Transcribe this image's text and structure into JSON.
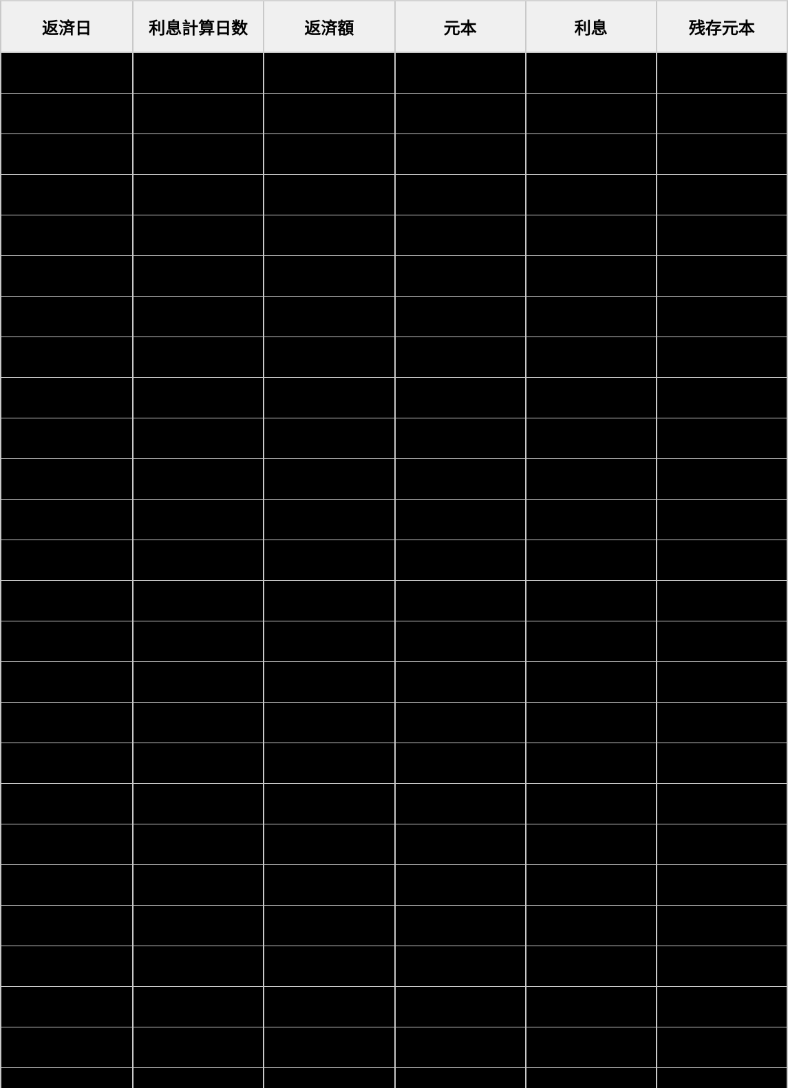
{
  "table": {
    "columns": [
      {
        "label": "返済日"
      },
      {
        "label": "利息計算日数"
      },
      {
        "label": "返済額"
      },
      {
        "label": "元本"
      },
      {
        "label": "利息"
      },
      {
        "label": "残存元本"
      }
    ],
    "body": {
      "row_count": 26,
      "rows_fully_visible": 25,
      "cell_text": ""
    },
    "colors": {
      "header_bg": "#f0f0f0",
      "header_text": "#000000",
      "row_bg": "#000000",
      "grid_line": "#c9c9c9",
      "outer_border": "#d3d3d3"
    }
  }
}
